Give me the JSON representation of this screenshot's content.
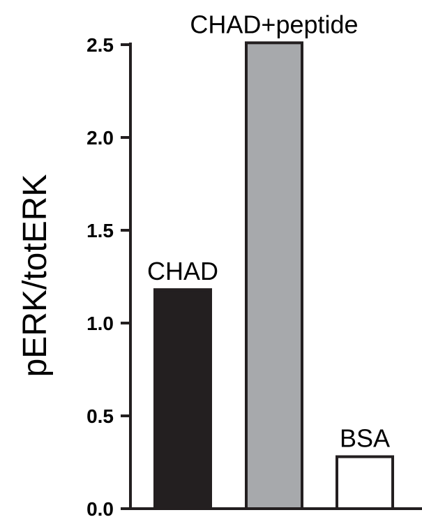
{
  "chart_data": {
    "type": "bar",
    "title": "",
    "xlabel": "",
    "ylabel": "pERK/totERK",
    "ylim": [
      0,
      2.5
    ],
    "yticks": [
      "0.0",
      "0.5",
      "1.0",
      "1.5",
      "2.0",
      "2.5"
    ],
    "grid": false,
    "categories": [
      "CHAD",
      "CHAD+peptide",
      "BSA"
    ],
    "values": [
      1.18,
      2.51,
      0.28
    ],
    "colors": [
      "#231f20",
      "#a7a9ac",
      "#ffffff"
    ],
    "edge_color": "#231f20"
  }
}
